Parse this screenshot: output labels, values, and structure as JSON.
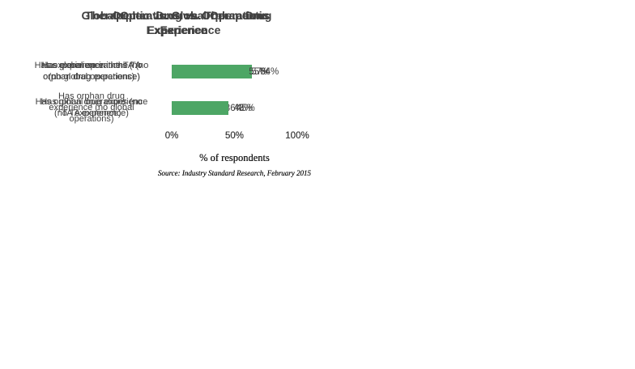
{
  "colors": {
    "bar_green": "#4DA665",
    "text_dark": "#404040",
    "background": "#ffffff"
  },
  "chart_data": [
    {
      "type": "bar",
      "orientation": "horizontal",
      "title": "Orphan Drug vs. Therapeutic\nExperience",
      "categories": [
        "Has experience in the TA (no\norphan drug experience)",
        "Has orphan drug experience\n(no TA experience)"
      ],
      "values": [
        57,
        43
      ],
      "value_labels": [
        "57%",
        "43%"
      ],
      "xlim": [
        0,
        100
      ],
      "xticks": [
        "0%",
        "50%",
        "100%"
      ],
      "xlabel": "% of respondents",
      "source": "Source: Industry Standard Research, February 2015",
      "grid": false,
      "legend": false
    },
    {
      "type": "bar",
      "orientation": "horizontal",
      "title": "Therapeutic vs. Global Operations\nExperience",
      "categories": [
        "Has experience in the TA\n(no global operations)",
        "Has global operations (no\nTA experience)"
      ],
      "values": [
        64,
        36
      ],
      "value_labels": [
        "64%",
        "36%"
      ],
      "xlim": [
        0,
        100
      ],
      "xticks": [
        "0%",
        "50%",
        "100%"
      ],
      "xlabel": "% of respondents",
      "source": "Source: Industry Standard Research, February 2015",
      "grid": false,
      "legend": false
    },
    {
      "type": "bar",
      "orientation": "horizontal",
      "title": "Global Operations vs. Orphan Drug\nExperience",
      "categories": [
        "Has global operations (no\norphan drug experience)",
        "Has orphan drug\nexperience (no global\noperations)"
      ],
      "values": [
        55,
        45
      ],
      "value_labels": [
        "55%",
        "45%"
      ],
      "xlim": [
        0,
        100
      ],
      "xticks": [
        "0%",
        "50%",
        "100%"
      ],
      "xlabel": "% of respondents",
      "source": "Source: Industry Standard Research, February 2015",
      "grid": false,
      "legend": false
    }
  ]
}
